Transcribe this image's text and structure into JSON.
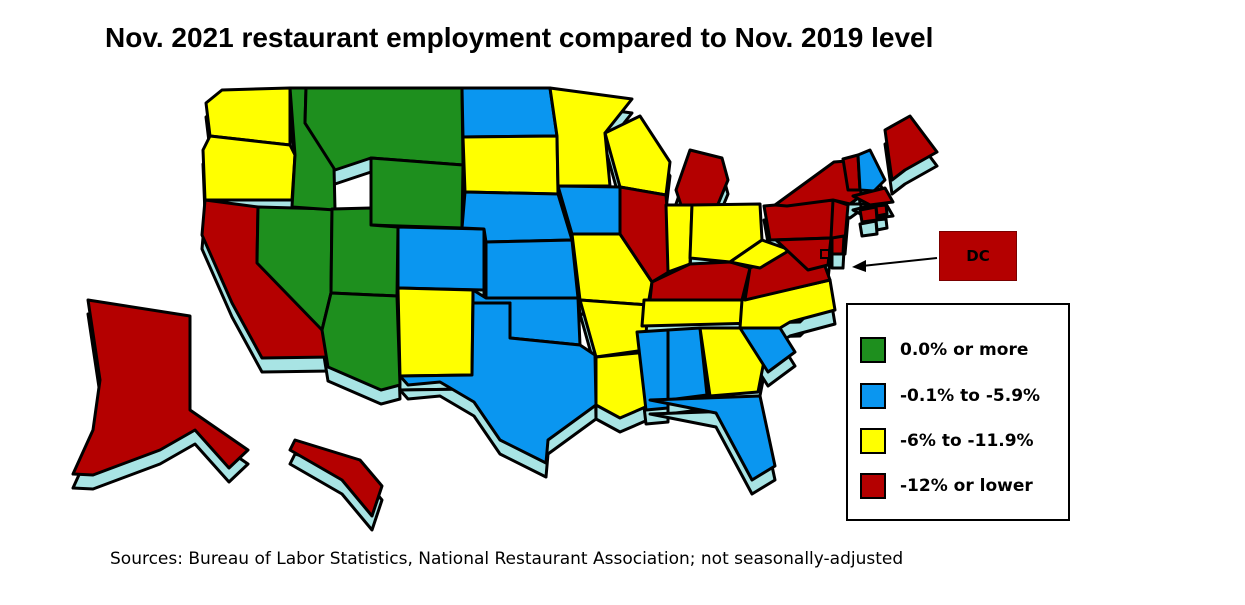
{
  "title": "Nov. 2021 restaurant employment compared to Nov. 2019 level",
  "source": "Sources: Bureau of Labor Statistics, National Restaurant Association; not seasonally-adjusted",
  "dc_label": "DC",
  "colors": {
    "green": "#1e8f1e",
    "blue": "#0a96f0",
    "yellow": "#ffff00",
    "red": "#b40000",
    "extrusion": "#a8e4e4"
  },
  "legend": [
    {
      "label": "0.0% or more",
      "color": "#1e8f1e",
      "category": "green"
    },
    {
      "label": "-0.1% to -5.9%",
      "color": "#0a96f0",
      "category": "blue"
    },
    {
      "label": "-6% to -11.9%",
      "color": "#ffff00",
      "category": "yellow"
    },
    {
      "label": "-12% or lower",
      "color": "#b40000",
      "category": "red"
    }
  ],
  "state_categories": {
    "WA": "yellow",
    "OR": "yellow",
    "CA": "red",
    "NV": "green",
    "ID": "green",
    "MT": "green",
    "WY": "green",
    "UT": "green",
    "AZ": "green",
    "CO": "blue",
    "NM": "yellow",
    "ND": "blue",
    "SD": "yellow",
    "NE": "blue",
    "KS": "blue",
    "OK": "blue",
    "TX": "blue",
    "MN": "yellow",
    "IA": "blue",
    "MO": "yellow",
    "AR": "yellow",
    "LA": "yellow",
    "WI": "yellow",
    "IL": "red",
    "MI": "red",
    "IN": "yellow",
    "OH": "yellow",
    "KY": "red",
    "TN": "yellow",
    "MS": "blue",
    "AL": "blue",
    "GA": "yellow",
    "FL": "blue",
    "SC": "blue",
    "NC": "yellow",
    "VA": "red",
    "WV": "yellow",
    "MD": "red",
    "DE": "red",
    "PA": "red",
    "NJ": "red",
    "NY": "red",
    "CT": "red",
    "RI": "red",
    "MA": "red",
    "VT": "red",
    "NH": "blue",
    "ME": "red",
    "AK": "red",
    "HI": "red",
    "DC": "red"
  }
}
